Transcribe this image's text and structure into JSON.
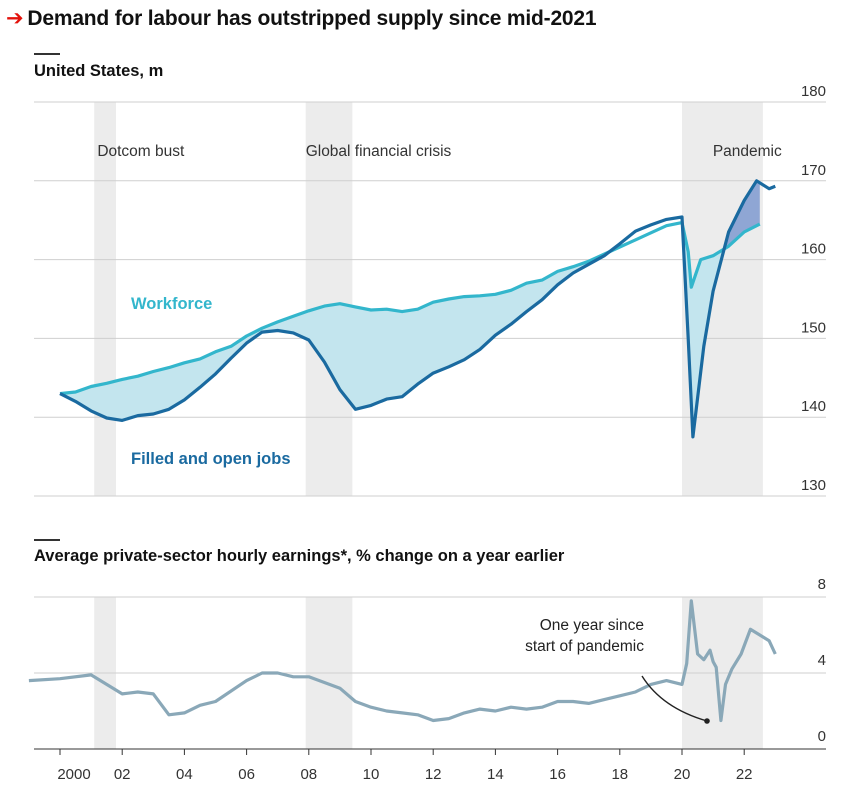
{
  "title": "Demand for labour has outstripped supply since mid-2021",
  "colors": {
    "workforce": "#33b6cc",
    "filled_jobs": "#1a6aa0",
    "fill_surplus": "#c3e5ee",
    "fill_shortage": "#8fa6d4",
    "earnings": "#8aa8b8",
    "recession_band": "#ececec",
    "accent": "#e3120b"
  },
  "chart_data": [
    {
      "type": "line",
      "title": "United States, m",
      "ylim": [
        130,
        180
      ],
      "yticks": [
        "180",
        "170",
        "160",
        "150",
        "140",
        "130"
      ],
      "annotations": [
        "Dotcom bust",
        "Global financial crisis",
        "Pandemic"
      ],
      "series": [
        {
          "name": "Workforce",
          "points": [
            [
              2000.0,
              143.0
            ],
            [
              2000.5,
              143.2
            ],
            [
              2001.0,
              143.9
            ],
            [
              2001.5,
              144.3
            ],
            [
              2002.0,
              144.8
            ],
            [
              2002.5,
              145.2
            ],
            [
              2003.0,
              145.8
            ],
            [
              2003.5,
              146.3
            ],
            [
              2004.0,
              146.9
            ],
            [
              2004.5,
              147.4
            ],
            [
              2005.0,
              148.3
            ],
            [
              2005.5,
              149.0
            ],
            [
              2006.0,
              150.3
            ],
            [
              2006.5,
              151.3
            ],
            [
              2007.0,
              152.1
            ],
            [
              2007.5,
              152.8
            ],
            [
              2008.0,
              153.5
            ],
            [
              2008.5,
              154.1
            ],
            [
              2009.0,
              154.4
            ],
            [
              2009.5,
              154.0
            ],
            [
              2010.0,
              153.6
            ],
            [
              2010.5,
              153.7
            ],
            [
              2011.0,
              153.4
            ],
            [
              2011.5,
              153.7
            ],
            [
              2012.0,
              154.6
            ],
            [
              2012.5,
              155.0
            ],
            [
              2013.0,
              155.3
            ],
            [
              2013.5,
              155.4
            ],
            [
              2014.0,
              155.6
            ],
            [
              2014.5,
              156.1
            ],
            [
              2015.0,
              157.0
            ],
            [
              2015.5,
              157.4
            ],
            [
              2016.0,
              158.5
            ],
            [
              2016.5,
              159.1
            ],
            [
              2017.0,
              159.8
            ],
            [
              2017.5,
              160.7
            ],
            [
              2018.0,
              161.6
            ],
            [
              2018.5,
              162.5
            ],
            [
              2019.0,
              163.4
            ],
            [
              2019.5,
              164.3
            ],
            [
              2020.0,
              164.7
            ],
            [
              2020.2,
              161.0
            ],
            [
              2020.3,
              156.5
            ],
            [
              2020.6,
              160.0
            ],
            [
              2021.0,
              160.5
            ],
            [
              2021.5,
              161.7
            ],
            [
              2022.0,
              163.5
            ],
            [
              2022.5,
              164.5
            ]
          ]
        },
        {
          "name": "Filled and open jobs",
          "points": [
            [
              2000.0,
              143.0
            ],
            [
              2000.5,
              142.0
            ],
            [
              2001.0,
              140.8
            ],
            [
              2001.5,
              139.9
            ],
            [
              2002.0,
              139.6
            ],
            [
              2002.5,
              140.2
            ],
            [
              2003.0,
              140.4
            ],
            [
              2003.5,
              141.0
            ],
            [
              2004.0,
              142.2
            ],
            [
              2004.5,
              143.8
            ],
            [
              2005.0,
              145.5
            ],
            [
              2005.5,
              147.5
            ],
            [
              2006.0,
              149.4
            ],
            [
              2006.5,
              150.8
            ],
            [
              2007.0,
              151.0
            ],
            [
              2007.5,
              150.7
            ],
            [
              2008.0,
              149.8
            ],
            [
              2008.5,
              147.0
            ],
            [
              2009.0,
              143.5
            ],
            [
              2009.5,
              141.0
            ],
            [
              2010.0,
              141.5
            ],
            [
              2010.5,
              142.3
            ],
            [
              2011.0,
              142.6
            ],
            [
              2011.5,
              144.2
            ],
            [
              2012.0,
              145.6
            ],
            [
              2012.5,
              146.4
            ],
            [
              2013.0,
              147.3
            ],
            [
              2013.5,
              148.6
            ],
            [
              2014.0,
              150.4
            ],
            [
              2014.5,
              151.8
            ],
            [
              2015.0,
              153.4
            ],
            [
              2015.5,
              154.9
            ],
            [
              2016.0,
              156.8
            ],
            [
              2016.5,
              158.3
            ],
            [
              2017.0,
              159.4
            ],
            [
              2017.5,
              160.5
            ],
            [
              2018.0,
              162.0
            ],
            [
              2018.5,
              163.6
            ],
            [
              2019.0,
              164.4
            ],
            [
              2019.5,
              165.1
            ],
            [
              2020.0,
              165.4
            ],
            [
              2020.2,
              150.0
            ],
            [
              2020.35,
              137.5
            ],
            [
              2020.7,
              149.0
            ],
            [
              2021.0,
              156.0
            ],
            [
              2021.5,
              163.5
            ],
            [
              2022.0,
              167.5
            ],
            [
              2022.4,
              170.0
            ],
            [
              2022.8,
              169.0
            ],
            [
              2023.0,
              169.3
            ]
          ]
        }
      ]
    },
    {
      "type": "line",
      "title": "Average private-sector hourly earnings*, % change on a year earlier",
      "ylim": [
        0,
        8
      ],
      "yticks": [
        "8",
        "4",
        "0"
      ],
      "xticks": [
        "2000",
        "02",
        "04",
        "06",
        "08",
        "10",
        "12",
        "14",
        "16",
        "18",
        "20",
        "22"
      ],
      "annotation": "One year since start of pandemic",
      "series": [
        {
          "name": "Average private-sector hourly earnings",
          "points": [
            [
              1999.0,
              3.6
            ],
            [
              2000.0,
              3.7
            ],
            [
              2001.0,
              3.9
            ],
            [
              2002.0,
              2.9
            ],
            [
              2002.5,
              3.0
            ],
            [
              2003.0,
              2.9
            ],
            [
              2003.5,
              1.8
            ],
            [
              2004.0,
              1.9
            ],
            [
              2004.5,
              2.3
            ],
            [
              2005.0,
              2.5
            ],
            [
              2006.0,
              3.6
            ],
            [
              2006.5,
              4.0
            ],
            [
              2007.0,
              4.0
            ],
            [
              2007.5,
              3.8
            ],
            [
              2008.0,
              3.8
            ],
            [
              2008.5,
              3.5
            ],
            [
              2009.0,
              3.2
            ],
            [
              2009.5,
              2.5
            ],
            [
              2010.0,
              2.2
            ],
            [
              2010.5,
              2.0
            ],
            [
              2011.0,
              1.9
            ],
            [
              2011.5,
              1.8
            ],
            [
              2012.0,
              1.5
            ],
            [
              2012.5,
              1.6
            ],
            [
              2013.0,
              1.9
            ],
            [
              2013.5,
              2.1
            ],
            [
              2014.0,
              2.0
            ],
            [
              2014.5,
              2.2
            ],
            [
              2015.0,
              2.1
            ],
            [
              2015.5,
              2.2
            ],
            [
              2016.0,
              2.5
            ],
            [
              2016.5,
              2.5
            ],
            [
              2017.0,
              2.4
            ],
            [
              2017.5,
              2.6
            ],
            [
              2018.0,
              2.8
            ],
            [
              2018.5,
              3.0
            ],
            [
              2019.0,
              3.4
            ],
            [
              2019.5,
              3.6
            ],
            [
              2020.0,
              3.4
            ],
            [
              2020.15,
              4.5
            ],
            [
              2020.3,
              7.8
            ],
            [
              2020.5,
              5.0
            ],
            [
              2020.7,
              4.7
            ],
            [
              2020.9,
              5.2
            ],
            [
              2021.0,
              4.6
            ],
            [
              2021.1,
              4.3
            ],
            [
              2021.25,
              1.5
            ],
            [
              2021.4,
              3.4
            ],
            [
              2021.6,
              4.2
            ],
            [
              2021.9,
              5.0
            ],
            [
              2022.2,
              6.3
            ],
            [
              2022.5,
              6.0
            ],
            [
              2022.8,
              5.7
            ],
            [
              2023.0,
              5.0
            ]
          ]
        }
      ]
    }
  ]
}
